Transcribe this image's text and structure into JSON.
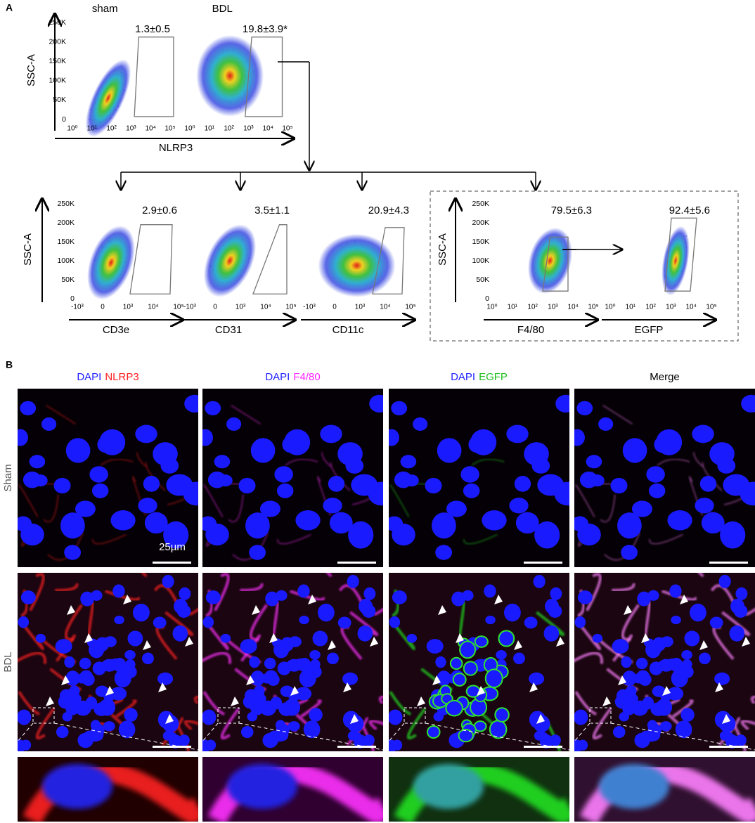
{
  "panel_a": {
    "label": "A",
    "top_row": [
      {
        "title": "sham",
        "gate_value": "1.3±0.5"
      },
      {
        "title": "BDL",
        "gate_value": "19.8±3.9*"
      }
    ],
    "top_y_label": "SSC-A",
    "top_x_label": "NLRP3",
    "y_ticks": [
      "250K",
      "200K",
      "150K",
      "100K",
      "50K",
      "0"
    ],
    "log_ticks": [
      "10⁰",
      "10¹",
      "10²",
      "10³",
      "10⁴",
      "10⁵"
    ],
    "biexp_ticks": [
      "-10³",
      "0",
      "10³",
      "10⁴",
      "10⁵"
    ],
    "bottom_row": [
      {
        "x_label": "CD3e",
        "gate_value": "2.9±0.6"
      },
      {
        "x_label": "CD31",
        "gate_value": "3.5±1.1"
      },
      {
        "x_label": "CD11c",
        "gate_value": "20.9±4.3"
      },
      {
        "x_label": "F4/80",
        "gate_value": "79.5±6.3"
      },
      {
        "x_label": "EGFP",
        "gate_value": "92.4±5.6"
      }
    ],
    "bottom_y_label": "SSC-A"
  },
  "panel_b": {
    "label": "B",
    "columns": [
      {
        "parts": [
          "DAPI",
          "NLRP3"
        ]
      },
      {
        "parts": [
          "DAPI",
          "F4/80"
        ]
      },
      {
        "parts": [
          "DAPI",
          "EGFP"
        ]
      },
      {
        "parts": [
          "Merge"
        ]
      }
    ],
    "rows": [
      "Sham",
      "BDL"
    ],
    "scale_bar": "25µm"
  }
}
